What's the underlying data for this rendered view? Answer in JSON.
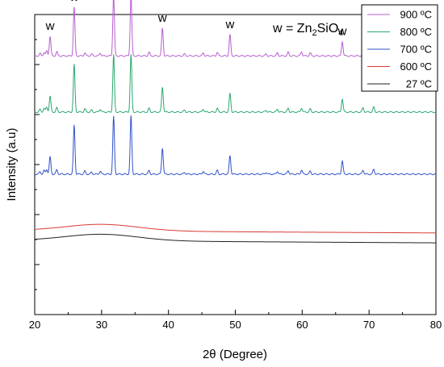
{
  "chart_data": {
    "type": "line",
    "xlabel": "2θ (Degree)",
    "ylabel": "Intensity (a.u)",
    "xlim": [
      20,
      80
    ],
    "x_ticks": [
      "20",
      "30",
      "40",
      "50",
      "60",
      "70",
      "80"
    ],
    "y_tick_labels": "none",
    "legend_placement": "top-right",
    "annotation": {
      "prefix": "w = Zn",
      "sub1": "2",
      "mid": "SiO",
      "sub2": "4"
    },
    "peak_marker_text": "w",
    "peak_positions": [
      22.3,
      25.9,
      31.8,
      34.4,
      39.1,
      49.2,
      66.0
    ],
    "series": [
      {
        "name": "900 ºC",
        "color": "#b75fcf",
        "baseline": 0.862,
        "amplitudes": [
          0.3,
          0.74,
          0.92,
          0.92,
          0.42,
          0.32,
          0.22
        ]
      },
      {
        "name": "800 ºC",
        "color": "#2aa870",
        "baseline": 0.675,
        "amplitudes": [
          0.24,
          0.72,
          0.87,
          0.87,
          0.38,
          0.28,
          0.2
        ]
      },
      {
        "name": "700 ºC",
        "color": "#3153c9",
        "baseline": 0.468,
        "amplitudes": [
          0.26,
          0.74,
          0.87,
          0.88,
          0.4,
          0.28,
          0.2
        ]
      },
      {
        "name": "600 ºC",
        "color": "#d83a35",
        "baseline": 0.28,
        "amplitudes": []
      },
      {
        "name": "27 ºC",
        "color": "#222222",
        "baseline": 0.247,
        "amplitudes": []
      }
    ]
  }
}
